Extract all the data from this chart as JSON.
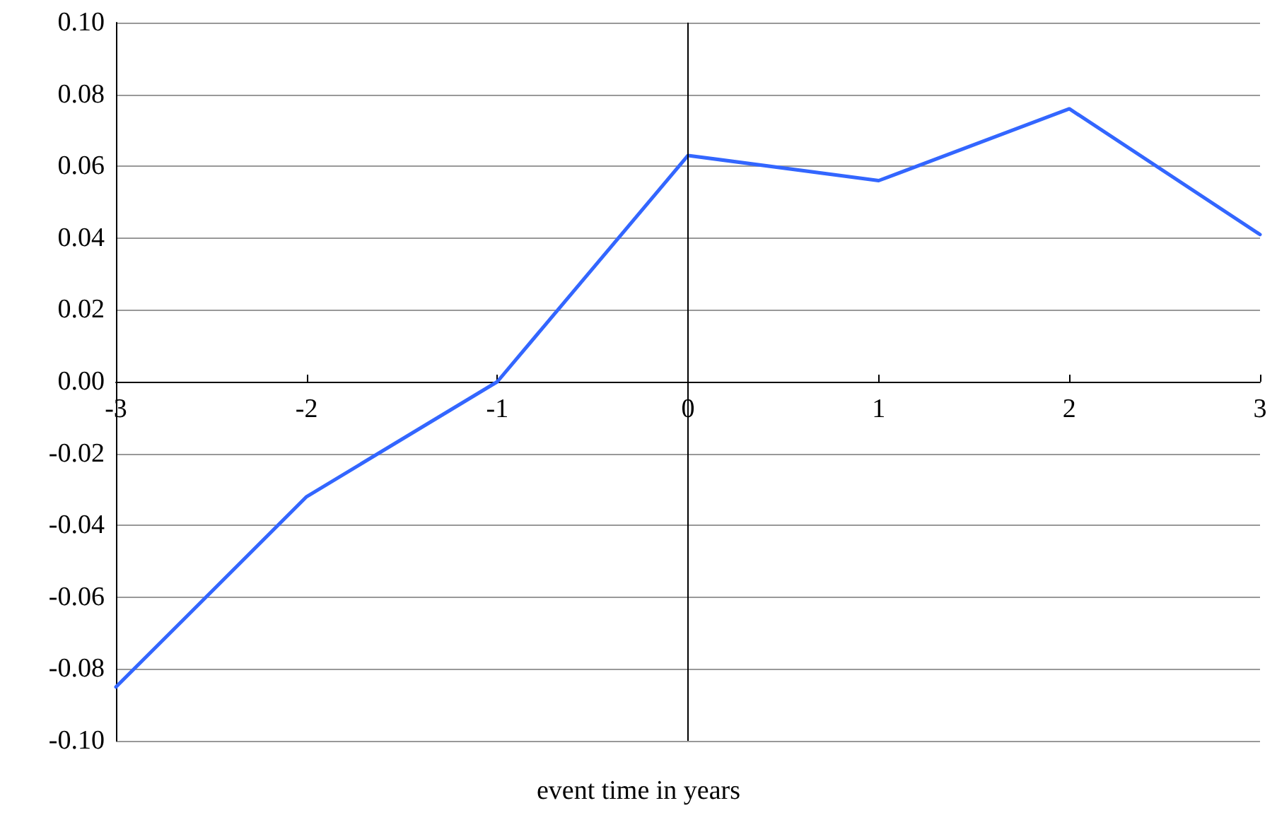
{
  "chart_data": {
    "type": "line",
    "xlabel": "event time in years",
    "x": [
      -3,
      -2,
      -1,
      0,
      1,
      2,
      3
    ],
    "series": [
      {
        "color": "#3366ff",
        "values": [
          -0.085,
          -0.032,
          0,
          0.063,
          0.056,
          0.076,
          0.041
        ]
      }
    ],
    "xlim": [
      -3,
      3
    ],
    "xticks": [
      -3,
      -2,
      -1,
      0,
      1,
      2,
      3
    ],
    "ylim": [
      -0.1,
      0.1
    ],
    "yticks": [
      {
        "value": -0.1,
        "label": "-0.10"
      },
      -0.08,
      -0.06,
      -0.04,
      -0.02,
      {
        "value": 0,
        "label": "0.00"
      },
      0.02,
      0.04,
      0.06,
      0.08,
      {
        "value": 0.1,
        "label": "0.10"
      }
    ],
    "ref_lines": [
      {
        "axis": "x",
        "value": 0,
        "color": "#000000"
      }
    ],
    "grid": "y",
    "marker": "none",
    "line_style": "solid"
  }
}
